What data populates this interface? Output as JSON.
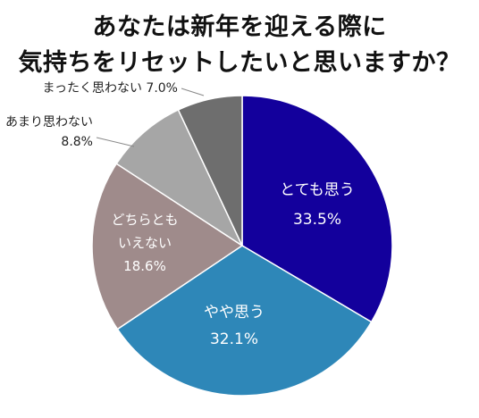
{
  "chart_data": {
    "type": "pie",
    "title_lines": [
      "あなたは新年を迎える際に",
      "気持ちをリセットしたいと思いますか？"
    ],
    "slices": [
      {
        "label": "とても思う",
        "value": 33.5,
        "display": "33.5%",
        "color": "#13009c",
        "text_color": "#ffffff"
      },
      {
        "label": "やや思う",
        "value": 32.1,
        "display": "32.1%",
        "color": "#2e87b8",
        "text_color": "#ffffff"
      },
      {
        "label": "どちらとも\nいえない",
        "value": 18.6,
        "display": "18.6%",
        "color": "#9f8b8b",
        "text_color": "#ffffff"
      },
      {
        "label": "あまり思わない",
        "value": 8.8,
        "display": "8.8%",
        "color": "#a6a6a6",
        "text_color": "#222222"
      },
      {
        "label": "まったく思わない",
        "value": 7.0,
        "display": "7.0%",
        "color": "#6e6e6e",
        "text_color": "#222222"
      }
    ],
    "start_angle_deg": 0,
    "direction": "clockwise",
    "legend": "none"
  }
}
